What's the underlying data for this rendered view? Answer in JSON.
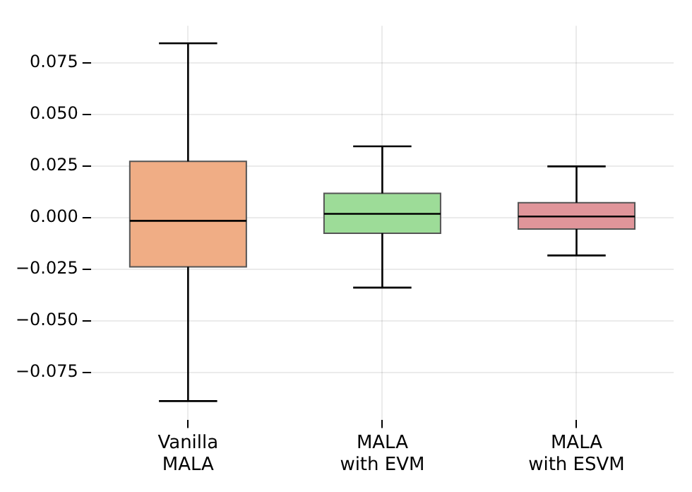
{
  "chart_data": {
    "type": "box",
    "categories": [
      "Vanilla\nMALA",
      "MALA\nwith EVM",
      "MALA\nwith ESVM"
    ],
    "boxes": [
      {
        "low": -0.089,
        "q1": -0.0239,
        "median": -0.0016,
        "q3": 0.0272,
        "high": 0.0845
      },
      {
        "low": -0.034,
        "q1": -0.0076,
        "median": 0.0018,
        "q3": 0.0117,
        "high": 0.0345
      },
      {
        "low": -0.0184,
        "q1": -0.0056,
        "median": 0.0005,
        "q3": 0.0072,
        "high": 0.0248
      }
    ],
    "colors": [
      "#f0ad85",
      "#9ddc98",
      "#e0959a"
    ],
    "ylim": [
      -0.098,
      0.093
    ],
    "yticks": [
      {
        "value": -0.075,
        "label": "−0.075"
      },
      {
        "value": -0.05,
        "label": "−0.050"
      },
      {
        "value": -0.025,
        "label": "−0.025"
      },
      {
        "value": 0,
        "label": "0.000"
      },
      {
        "value": 0.025,
        "label": "0.025"
      },
      {
        "value": 0.05,
        "label": "0.050"
      },
      {
        "value": 0.075,
        "label": "0.075"
      }
    ],
    "grid": true
  }
}
